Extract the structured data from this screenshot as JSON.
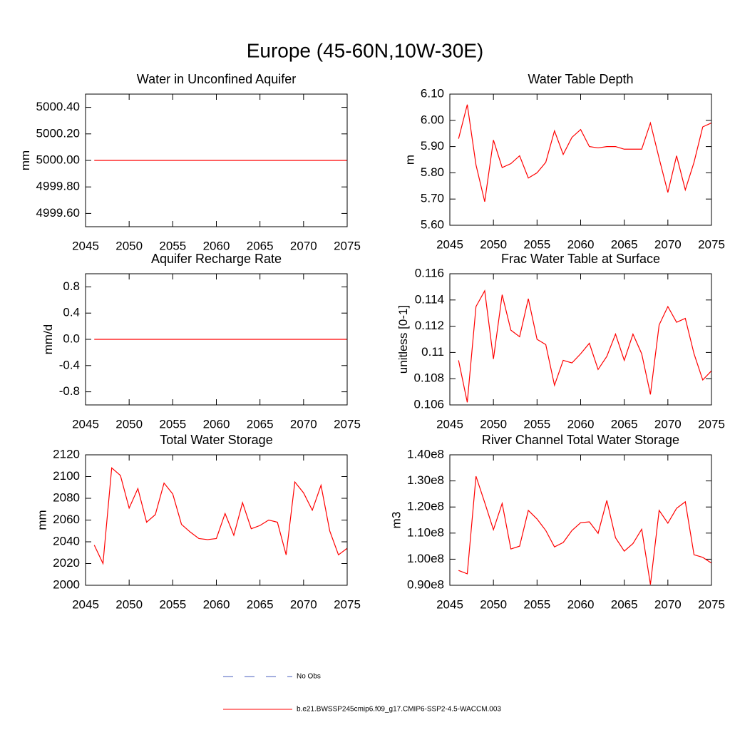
{
  "title": "Europe (45-60N,10W-30E)",
  "legend": [
    {
      "name": "No Obs",
      "color": "#4a5fbf",
      "line_style": "dashed"
    },
    {
      "name": "b.e21.BWSSP245cmip6.f09_g17.CMIP6-SSP2-4.5-WACCM.003",
      "color": "#ff0000",
      "line_style": "solid"
    }
  ],
  "chart_data": [
    {
      "type": "line",
      "title": "Water in Unconfined Aquifer",
      "ylabel": "mm",
      "x": [
        2046,
        2047,
        2048,
        2049,
        2050,
        2051,
        2052,
        2053,
        2054,
        2055,
        2056,
        2057,
        2058,
        2059,
        2060,
        2061,
        2062,
        2063,
        2064,
        2065,
        2066,
        2067,
        2068,
        2069,
        2070,
        2071,
        2072,
        2073,
        2074,
        2075
      ],
      "values": [
        5000,
        5000,
        5000,
        5000,
        5000,
        5000,
        5000,
        5000,
        5000,
        5000,
        5000,
        5000,
        5000,
        5000,
        5000,
        5000,
        5000,
        5000,
        5000,
        5000,
        5000,
        5000,
        5000,
        5000,
        5000,
        5000,
        5000,
        5000,
        5000,
        5000
      ],
      "color": "#ff0000",
      "xlim": [
        2045,
        2075
      ],
      "xticks": [
        2045,
        2050,
        2055,
        2060,
        2065,
        2070,
        2075
      ],
      "ylim": [
        4999.5,
        5000.5
      ],
      "yticks": [
        {
          "value": 4999.6,
          "label": "4999.60"
        },
        {
          "value": 4999.8,
          "label": "4999.80"
        },
        {
          "value": 5000,
          "label": "5000.00"
        },
        {
          "value": 5000.2,
          "label": "5000.20"
        },
        {
          "value": 5000.4,
          "label": "5000.40"
        }
      ]
    },
    {
      "type": "line",
      "title": "Water Table Depth",
      "ylabel": "m",
      "x": [
        2046,
        2047,
        2048,
        2049,
        2050,
        2051,
        2052,
        2053,
        2054,
        2055,
        2056,
        2057,
        2058,
        2059,
        2060,
        2061,
        2062,
        2063,
        2064,
        2065,
        2066,
        2067,
        2068,
        2069,
        2070,
        2071,
        2072,
        2073,
        2074,
        2075
      ],
      "values": [
        5.93,
        6.06,
        5.83,
        5.69,
        5.925,
        5.82,
        5.835,
        5.865,
        5.78,
        5.8,
        5.84,
        5.96,
        5.87,
        5.935,
        5.965,
        5.9,
        5.895,
        5.9,
        5.9,
        5.89,
        5.89,
        5.89,
        5.99,
        5.855,
        5.725,
        5.865,
        5.735,
        5.84,
        5.975,
        5.99
      ],
      "color": "#ff0000",
      "xlim": [
        2045,
        2075
      ],
      "xticks": [
        2045,
        2050,
        2055,
        2060,
        2065,
        2070,
        2075
      ],
      "ylim": [
        5.6,
        6.1
      ],
      "yticks": [
        {
          "value": 5.6,
          "label": "5.60"
        },
        {
          "value": 5.7,
          "label": "5.70"
        },
        {
          "value": 5.8,
          "label": "5.80"
        },
        {
          "value": 5.9,
          "label": "5.90"
        },
        {
          "value": 6.0,
          "label": "6.00"
        },
        {
          "value": 6.1,
          "label": "6.10"
        }
      ]
    },
    {
      "type": "line",
      "title": "Aquifer Recharge Rate",
      "ylabel": "mm/d",
      "x": [
        2046,
        2047,
        2048,
        2049,
        2050,
        2051,
        2052,
        2053,
        2054,
        2055,
        2056,
        2057,
        2058,
        2059,
        2060,
        2061,
        2062,
        2063,
        2064,
        2065,
        2066,
        2067,
        2068,
        2069,
        2070,
        2071,
        2072,
        2073,
        2074,
        2075
      ],
      "values": [
        0,
        0,
        0,
        0,
        0,
        0,
        0,
        0,
        0,
        0,
        0,
        0,
        0,
        0,
        0,
        0,
        0,
        0,
        0,
        0,
        0,
        0,
        0,
        0,
        0,
        0,
        0,
        0,
        0,
        0
      ],
      "color": "#ff0000",
      "xlim": [
        2045,
        2075
      ],
      "xticks": [
        2045,
        2050,
        2055,
        2060,
        2065,
        2070,
        2075
      ],
      "ylim": [
        -1,
        1
      ],
      "yticks": [
        -0.8,
        -0.4,
        {
          "value": 0,
          "label": "0.0"
        },
        0.4,
        0.8
      ]
    },
    {
      "type": "line",
      "title": "Frac Water Table at Surface",
      "ylabel": "unitless [0-1]",
      "x": [
        2046,
        2047,
        2048,
        2049,
        2050,
        2051,
        2052,
        2053,
        2054,
        2055,
        2056,
        2057,
        2058,
        2059,
        2060,
        2061,
        2062,
        2063,
        2064,
        2065,
        2066,
        2067,
        2068,
        2069,
        2070,
        2071,
        2072,
        2073,
        2074,
        2075
      ],
      "values": [
        0.1094,
        0.1062,
        0.1135,
        0.1147,
        0.1095,
        0.1144,
        0.1117,
        0.1112,
        0.1141,
        0.111,
        0.1106,
        0.1075,
        0.1094,
        0.1092,
        0.1099,
        0.1107,
        0.1087,
        0.1097,
        0.1114,
        0.1094,
        0.1114,
        0.1099,
        0.1068,
        0.1121,
        0.1135,
        0.1123,
        0.1126,
        0.1099,
        0.1079,
        0.1086
      ],
      "color": "#ff0000",
      "xlim": [
        2045,
        2075
      ],
      "xticks": [
        2045,
        2050,
        2055,
        2060,
        2065,
        2070,
        2075
      ],
      "ylim": [
        0.106,
        0.116
      ],
      "yticks": [
        0.106,
        0.108,
        0.11,
        0.112,
        0.114,
        0.116
      ]
    },
    {
      "type": "line",
      "title": "Total Water Storage",
      "ylabel": "mm",
      "x": [
        2046,
        2047,
        2048,
        2049,
        2050,
        2051,
        2052,
        2053,
        2054,
        2055,
        2056,
        2057,
        2058,
        2059,
        2060,
        2061,
        2062,
        2063,
        2064,
        2065,
        2066,
        2067,
        2068,
        2069,
        2070,
        2071,
        2072,
        2073,
        2074,
        2075
      ],
      "values": [
        2037,
        2020,
        2108,
        2101,
        2071,
        2089,
        2058,
        2065,
        2094,
        2084,
        2056,
        2049,
        2043,
        2042,
        2043,
        2066,
        2046,
        2076,
        2052,
        2055,
        2060,
        2058,
        2028,
        2095,
        2085,
        2069,
        2092,
        2050,
        2028,
        2034
      ],
      "color": "#ff0000",
      "xlim": [
        2045,
        2075
      ],
      "xticks": [
        2045,
        2050,
        2055,
        2060,
        2065,
        2070,
        2075
      ],
      "ylim": [
        2000,
        2120
      ],
      "yticks": [
        2000,
        2020,
        2040,
        2060,
        2080,
        2100,
        2120
      ]
    },
    {
      "type": "line",
      "title": "River Channel Total Water Storage",
      "ylabel": "m3",
      "x": [
        2046,
        2047,
        2048,
        2049,
        2050,
        2051,
        2052,
        2053,
        2054,
        2055,
        2056,
        2057,
        2058,
        2059,
        2060,
        2061,
        2062,
        2063,
        2064,
        2065,
        2066,
        2067,
        2068,
        2069,
        2070,
        2071,
        2072,
        2073,
        2074,
        2075
      ],
      "values": [
        95700000,
        94400000,
        131800000,
        121700000,
        111300000,
        121400000,
        103900000,
        105000000,
        118700000,
        115400000,
        111000000,
        104700000,
        106400000,
        111000000,
        114000000,
        114300000,
        109900000,
        122500000,
        108200000,
        103100000,
        106000000,
        111500000,
        90300000,
        118700000,
        113800000,
        119500000,
        122000000,
        101700000,
        100700000,
        98500000
      ],
      "color": "#ff0000",
      "xlim": [
        2045,
        2075
      ],
      "xticks": [
        2045,
        2050,
        2055,
        2060,
        2065,
        2070,
        2075
      ],
      "ylim": [
        90000000,
        140000000
      ],
      "yticks": [
        {
          "value": 90000000,
          "label": "0.90e8"
        },
        {
          "value": 100000000,
          "label": "1.00e8"
        },
        {
          "value": 110000000,
          "label": "1.10e8"
        },
        {
          "value": 120000000,
          "label": "1.20e8"
        },
        {
          "value": 130000000,
          "label": "1.30e8"
        },
        {
          "value": 140000000,
          "label": "1.40e8"
        }
      ]
    }
  ]
}
